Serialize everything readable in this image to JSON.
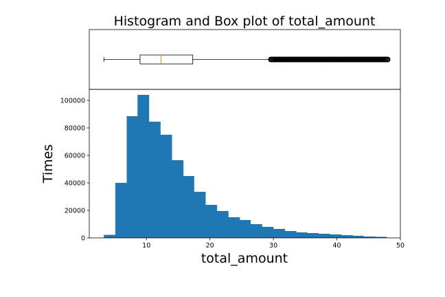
{
  "chart_data": [
    {
      "type": "box",
      "title": "Histogram and Box plot of total_amount",
      "variable": "total_amount",
      "whisker_low": 3.3,
      "q1": 9.0,
      "median": 12.3,
      "q3": 17.3,
      "whisker_high": 29.6,
      "outliers_range": [
        29.6,
        48.0
      ],
      "xlim": [
        1,
        50
      ],
      "colors": {
        "box_edge": "#000000",
        "median": "#ff7f0e",
        "outlier": "#000000"
      }
    },
    {
      "type": "bar",
      "subtype": "histogram",
      "xlabel": "total_amount",
      "ylabel": "Times",
      "xlim": [
        1,
        50
      ],
      "ylim": [
        0,
        108000
      ],
      "xticks": [
        10,
        20,
        30,
        40,
        50
      ],
      "yticks": [
        0,
        20000,
        40000,
        60000,
        80000,
        100000
      ],
      "bin_edges": [
        3.3,
        5.1,
        6.9,
        8.6,
        10.4,
        12.2,
        14.0,
        15.8,
        17.5,
        19.3,
        21.1,
        22.9,
        24.7,
        26.4,
        28.2,
        30.0,
        31.8,
        33.6,
        35.3,
        37.1,
        38.9,
        40.7,
        42.5,
        44.2,
        46.0,
        47.8
      ],
      "values": [
        2200,
        40000,
        88500,
        104000,
        84500,
        75000,
        56500,
        45000,
        33500,
        24000,
        19500,
        15000,
        13000,
        10000,
        8000,
        6500,
        5000,
        4000,
        3500,
        3000,
        2500,
        2000,
        1500,
        1000,
        800
      ],
      "color": "#1f77b4"
    }
  ]
}
